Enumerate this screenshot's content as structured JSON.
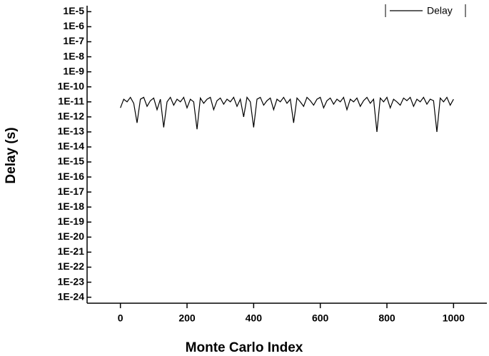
{
  "chart_data": {
    "type": "line",
    "log_y": true,
    "xlabel": "Monte Carlo Index",
    "ylabel": "Delay (s)",
    "xlim": [
      -100,
      1100
    ],
    "xticks": [
      0,
      200,
      400,
      600,
      800,
      1000
    ],
    "ylim": [
      4e-25,
      2.5e-05
    ],
    "yticks": [
      {
        "value": 1e-05,
        "label": "1E-5"
      },
      {
        "value": 1e-06,
        "label": "1E-6"
      },
      {
        "value": 1e-07,
        "label": "1E-7"
      },
      {
        "value": 1e-08,
        "label": "1E-8"
      },
      {
        "value": 1e-09,
        "label": "1E-9"
      },
      {
        "value": 1e-10,
        "label": "1E-10"
      },
      {
        "value": 1e-11,
        "label": "1E-11"
      },
      {
        "value": 1e-12,
        "label": "1E-12"
      },
      {
        "value": 1e-13,
        "label": "1E-13"
      },
      {
        "value": 1e-14,
        "label": "1E-14"
      },
      {
        "value": 1e-15,
        "label": "1E-15"
      },
      {
        "value": 1e-16,
        "label": "1E-16"
      },
      {
        "value": 1e-17,
        "label": "1E-17"
      },
      {
        "value": 1e-18,
        "label": "1E-18"
      },
      {
        "value": 1e-19,
        "label": "1E-19"
      },
      {
        "value": 1e-20,
        "label": "1E-20"
      },
      {
        "value": 1e-21,
        "label": "1E-21"
      },
      {
        "value": 1e-22,
        "label": "1E-22"
      },
      {
        "value": 1e-23,
        "label": "1E-23"
      },
      {
        "value": 1e-24,
        "label": "1E-24"
      }
    ],
    "legend": "top-right",
    "x": [
      0,
      10,
      20,
      30,
      40,
      50,
      60,
      70,
      80,
      90,
      100,
      110,
      120,
      130,
      140,
      150,
      160,
      170,
      180,
      190,
      200,
      210,
      220,
      230,
      240,
      250,
      260,
      270,
      280,
      290,
      300,
      310,
      320,
      330,
      340,
      350,
      360,
      370,
      380,
      390,
      400,
      410,
      420,
      430,
      440,
      450,
      460,
      470,
      480,
      490,
      500,
      510,
      520,
      530,
      540,
      550,
      560,
      570,
      580,
      590,
      600,
      610,
      620,
      630,
      640,
      650,
      660,
      670,
      680,
      690,
      700,
      710,
      720,
      730,
      740,
      750,
      760,
      770,
      780,
      790,
      800,
      810,
      820,
      830,
      840,
      850,
      860,
      870,
      880,
      890,
      900,
      910,
      920,
      930,
      940,
      950,
      960,
      970,
      980,
      990,
      1000
    ],
    "series": [
      {
        "name": "Delay",
        "color": "#000000",
        "values": [
          4e-12,
          1.5e-11,
          1e-11,
          2e-11,
          8e-12,
          4e-13,
          1.5e-11,
          2e-11,
          5e-12,
          1.2e-11,
          1.8e-11,
          3e-12,
          1.5e-11,
          2e-13,
          1e-11,
          2e-11,
          6e-12,
          1.5e-11,
          1e-11,
          2e-11,
          4e-12,
          1.5e-11,
          1e-11,
          1.5e-13,
          1.8e-11,
          8e-12,
          1.5e-11,
          2e-11,
          3e-12,
          1.2e-11,
          1.8e-11,
          7e-12,
          1.5e-11,
          1e-11,
          2e-11,
          5e-12,
          1.5e-11,
          1e-12,
          2e-11,
          1e-11,
          2e-13,
          1.5e-11,
          2e-11,
          6e-12,
          1.2e-11,
          1.8e-11,
          3e-12,
          1.5e-11,
          1e-11,
          2e-11,
          8e-12,
          1.5e-11,
          4e-13,
          1.8e-11,
          1e-11,
          5e-12,
          2e-11,
          1.2e-11,
          6e-12,
          1.5e-11,
          2e-11,
          4e-12,
          1.2e-11,
          1.8e-11,
          7e-12,
          1.5e-11,
          1e-11,
          2e-11,
          3e-12,
          1.5e-11,
          1e-11,
          1.8e-11,
          5e-12,
          1.2e-11,
          2e-11,
          8e-12,
          1.5e-11,
          1e-13,
          1.8e-11,
          1e-11,
          2e-11,
          4e-12,
          1.5e-11,
          1e-11,
          6e-12,
          1.8e-11,
          1.2e-11,
          2e-11,
          5e-12,
          1.5e-11,
          1e-11,
          2e-11,
          7e-12,
          1.5e-11,
          1.2e-11,
          1e-13,
          1.8e-11,
          1e-11,
          2e-11,
          6e-12,
          1.5e-11
        ]
      }
    ]
  }
}
